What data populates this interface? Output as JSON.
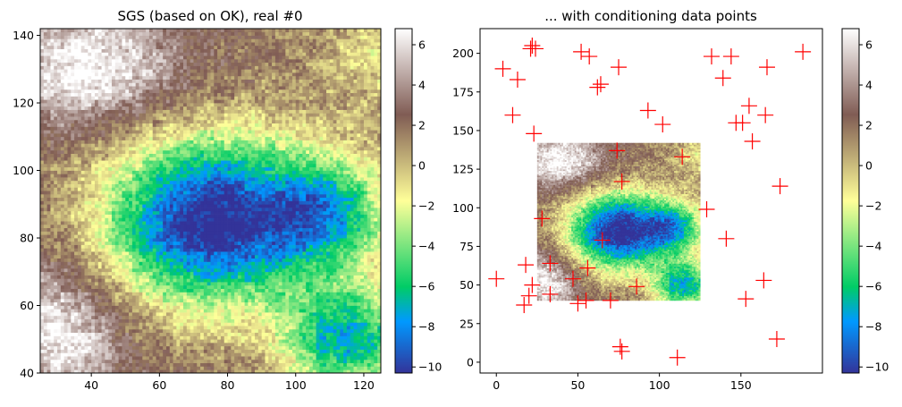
{
  "chart_data": [
    {
      "type": "heatmap",
      "title": "SGS (based on OK), real #0",
      "xlabel": "",
      "ylabel": "",
      "xlim": [
        25,
        125
      ],
      "ylim": [
        40,
        142
      ],
      "xticks": [
        40,
        60,
        80,
        100,
        120
      ],
      "yticks": [
        40,
        60,
        80,
        100,
        120,
        140
      ],
      "colormap": "terrain",
      "value_range": [
        -10.3,
        6.8
      ],
      "field_centers": [
        {
          "x": 75,
          "y": 85,
          "amp": -13.0,
          "sx": 22,
          "sy": 18
        },
        {
          "x": 115,
          "y": 50,
          "amp": -9.0,
          "sx": 13,
          "sy": 11
        },
        {
          "x": 110,
          "y": 88,
          "amp": -7.0,
          "sx": 13,
          "sy": 12
        },
        {
          "x": 40,
          "y": 130,
          "amp": 5.0,
          "sx": 18,
          "sy": 13
        },
        {
          "x": 30,
          "y": 52,
          "amp": 5.0,
          "sx": 14,
          "sy": 14
        },
        {
          "x": 125,
          "y": 135,
          "amp": -3.0,
          "sx": 14,
          "sy": 12
        }
      ],
      "field_base": 2.0,
      "colorbar": {
        "ticks": [
          -10,
          -8,
          -6,
          -4,
          -2,
          0,
          2,
          4,
          6
        ],
        "tick_labels": [
          "−10",
          "−8",
          "−6",
          "−4",
          "−2",
          "0",
          "2",
          "4",
          "6"
        ]
      }
    },
    {
      "type": "heatmap+scatter",
      "title": "... with conditioning data points",
      "xlabel": "",
      "ylabel": "",
      "xlim": [
        -10,
        200
      ],
      "ylim": [
        -7,
        216
      ],
      "xticks": [
        0,
        50,
        100,
        150
      ],
      "yticks": [
        0,
        25,
        50,
        75,
        100,
        125,
        150,
        175,
        200
      ],
      "image_extent": {
        "x": [
          25,
          125
        ],
        "y": [
          40,
          142
        ]
      },
      "marker": "+",
      "marker_color": "#ff0000",
      "points": [
        [
          21,
          203
        ],
        [
          22,
          205
        ],
        [
          24,
          203
        ],
        [
          52,
          201
        ],
        [
          57,
          198
        ],
        [
          75,
          191
        ],
        [
          132,
          198
        ],
        [
          144,
          198
        ],
        [
          166,
          191
        ],
        [
          188,
          201
        ],
        [
          4,
          190
        ],
        [
          13,
          183
        ],
        [
          62,
          178
        ],
        [
          64,
          180
        ],
        [
          139,
          184
        ],
        [
          10,
          160
        ],
        [
          23,
          148
        ],
        [
          93,
          163
        ],
        [
          102,
          154
        ],
        [
          147,
          155
        ],
        [
          155,
          166
        ],
        [
          151,
          155
        ],
        [
          157,
          143
        ],
        [
          165,
          160
        ],
        [
          74,
          137
        ],
        [
          114,
          133
        ],
        [
          77,
          117
        ],
        [
          174,
          114
        ],
        [
          28,
          93
        ],
        [
          129,
          99
        ],
        [
          65,
          79
        ],
        [
          141,
          80
        ],
        [
          18,
          63
        ],
        [
          33,
          64
        ],
        [
          56,
          61
        ],
        [
          0,
          54
        ],
        [
          22,
          50
        ],
        [
          47,
          54
        ],
        [
          86,
          49
        ],
        [
          164,
          53
        ],
        [
          20,
          43
        ],
        [
          33,
          44
        ],
        [
          50,
          38
        ],
        [
          55,
          40
        ],
        [
          17,
          37
        ],
        [
          70,
          40
        ],
        [
          153,
          41
        ],
        [
          76,
          10
        ],
        [
          77,
          7
        ],
        [
          111,
          3
        ],
        [
          172,
          15
        ]
      ],
      "colorbar": {
        "ticks": [
          -10,
          -8,
          -6,
          -4,
          -2,
          0,
          2,
          4,
          6
        ],
        "tick_labels": [
          "−10",
          "−8",
          "−6",
          "−4",
          "−2",
          "0",
          "2",
          "4",
          "6"
        ]
      }
    }
  ]
}
